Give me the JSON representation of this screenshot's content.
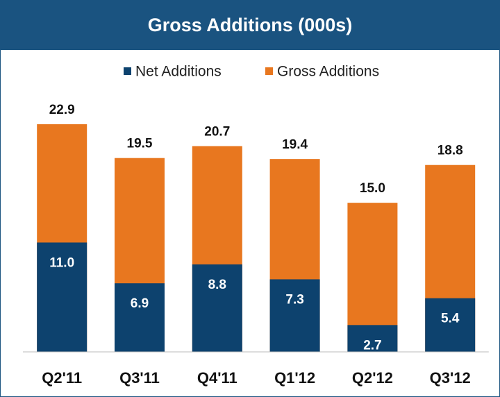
{
  "chart_data": {
    "type": "bar",
    "title": "Gross Additions (000s)",
    "categories": [
      "Q2'11",
      "Q3'11",
      "Q4'11",
      "Q1'12",
      "Q2'12",
      "Q3'12"
    ],
    "series": [
      {
        "name": "Net Additions",
        "color": "#0d426e",
        "values": [
          11.0,
          6.9,
          8.8,
          7.3,
          2.7,
          5.4
        ],
        "value_labels": [
          "11.0",
          "6.9",
          "8.8",
          "7.3",
          "2.7",
          "5.4"
        ]
      },
      {
        "name": "Gross Additions",
        "color": "#e8771f",
        "values": [
          22.9,
          19.5,
          20.7,
          19.4,
          15.0,
          18.8
        ],
        "value_labels": [
          "22.9",
          "19.5",
          "20.7",
          "19.4",
          "15.0",
          "18.8"
        ]
      }
    ]
  }
}
